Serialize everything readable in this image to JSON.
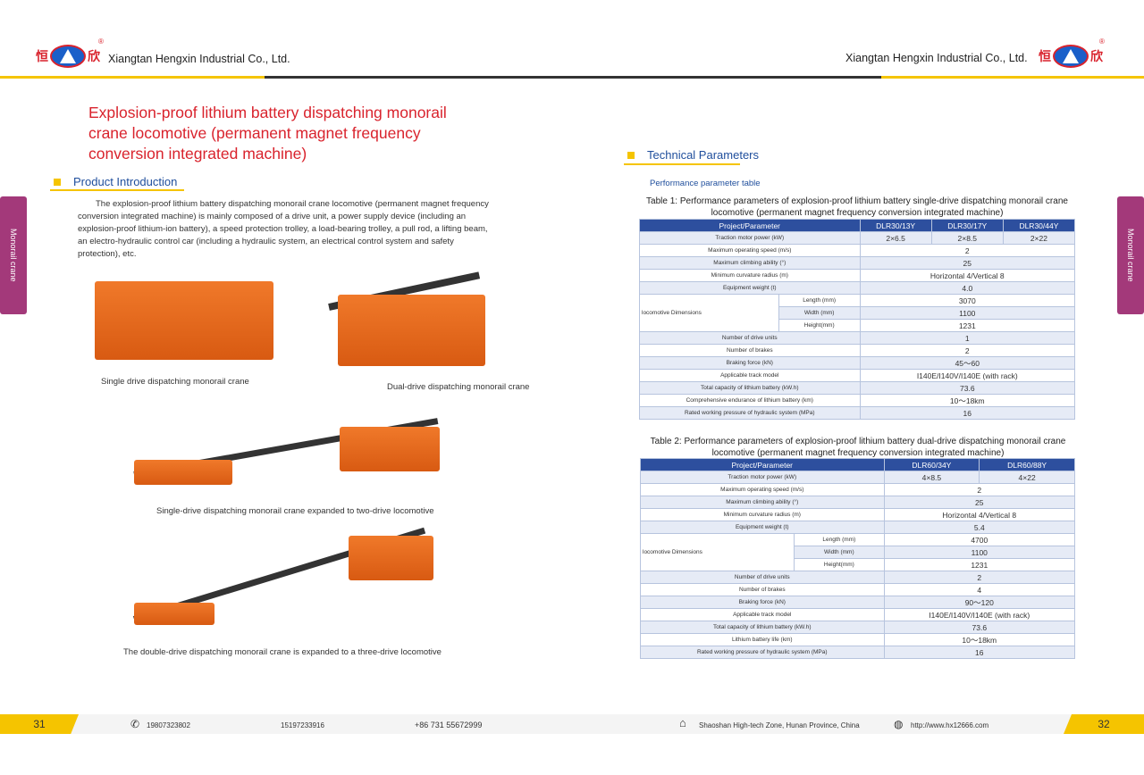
{
  "header": {
    "company": "Xiangtan Hengxin Industrial Co., Ltd.",
    "logo_text": [
      "恒",
      "欣"
    ],
    "registered": "®"
  },
  "side_tab": "Monorail crane",
  "left": {
    "title": "Explosion-proof lithium battery dispatching monorail crane locomotive (permanent magnet frequency conversion integrated machine)",
    "section": "Product Introduction",
    "intro": "The explosion-proof lithium battery dispatching monorail crane locomotive (permanent magnet frequency conversion integrated machine) is mainly composed of a drive unit, a power supply device (including an explosion-proof lithium-ion battery), a speed protection trolley, a load-bearing trolley, a pull rod, a lifting beam, an electro-hydraulic control car (including a hydraulic system, an electrical control system and safety protection), etc.",
    "captions": [
      "Single drive dispatching monorail crane",
      "Dual-drive dispatching monorail crane",
      "Single-drive dispatching monorail crane expanded to two-drive locomotive",
      "The double-drive dispatching monorail crane is expanded to a three-drive locomotive"
    ]
  },
  "right": {
    "section": "Technical Parameters",
    "subtitle": "Performance parameter table",
    "table1": {
      "caption": "Table 1: Performance parameters of explosion-proof lithium battery single-drive dispatching monorail crane locomotive (permanent magnet frequency conversion integrated machine)",
      "headers": [
        "Project/Parameter",
        "DLR30/13Y",
        "DLR30/17Y",
        "DLR30/44Y"
      ],
      "power": [
        "Traction motor power (kW)",
        "2×6.5",
        "2×8.5",
        "2×22"
      ],
      "rows_before": [
        [
          "Maximum operating speed (m/s)",
          "2"
        ],
        [
          "Maximum climbing ability (°)",
          "25"
        ],
        [
          "Minimum curvature radius (m)",
          "Horizontal 4/Vertical 8"
        ],
        [
          "Equipment weight (t)",
          "4.0"
        ]
      ],
      "dims_label": "locomotive Dimensions",
      "dims": [
        [
          "Length (mm)",
          "3070"
        ],
        [
          "Width (mm)",
          "1100"
        ],
        [
          "Height(mm)",
          "1231"
        ]
      ],
      "rows_after": [
        [
          "Number of drive units",
          "1"
        ],
        [
          "Number of brakes",
          "2"
        ],
        [
          "Braking force (kN)",
          "45～60"
        ],
        [
          "Applicable track model",
          "I140E/I140V/I140E (with rack)"
        ],
        [
          "Total capacity of lithium battery (kW.h)",
          "73.6"
        ],
        [
          "Comprehensive endurance of lithium battery (km)",
          "10～18km"
        ],
        [
          "Rated working pressure of hydraulic system (MPa)",
          "16"
        ]
      ]
    },
    "table2": {
      "caption": "Table 2: Performance parameters of explosion-proof lithium battery dual-drive dispatching monorail crane locomotive (permanent magnet frequency conversion integrated machine)",
      "headers": [
        "Project/Parameter",
        "DLR60/34Y",
        "DLR60/88Y"
      ],
      "power": [
        "Traction motor power (kW)",
        "4×8.5",
        "4×22"
      ],
      "rows_before": [
        [
          "Maximum operating speed (m/s)",
          "2"
        ],
        [
          "Maximum climbing ability (°)",
          "25"
        ],
        [
          "Minimum curvature radius (m)",
          "Horizontal 4/Vertical 8"
        ],
        [
          "Equipment weight (t)",
          "5.4"
        ]
      ],
      "dims_label": "locomotive Dimensions",
      "dims": [
        [
          "Length (mm)",
          "4700"
        ],
        [
          "Width (mm)",
          "1100"
        ],
        [
          "Height(mm)",
          "1231"
        ]
      ],
      "rows_after": [
        [
          "Number of drive units",
          "2"
        ],
        [
          "Number of brakes",
          "4"
        ],
        [
          "Braking force (kN)",
          "90～120"
        ],
        [
          "Applicable track model",
          "I140E/I140V/I140E (with rack)"
        ],
        [
          "Total capacity of lithium battery (kW.h)",
          "73.6"
        ],
        [
          "Lithium battery life (km)",
          "10～18km"
        ],
        [
          "Rated working pressure of hydraulic system (MPa)",
          "16"
        ]
      ]
    }
  },
  "footer": {
    "page_left": "31",
    "page_right": "32",
    "phone1": "19807323802",
    "phone2": "15197233916",
    "phone3": "+86 731 55672999",
    "address": "Shaoshan High-tech Zone, Hunan Province, China",
    "website": "http://www.hx12666.com"
  }
}
